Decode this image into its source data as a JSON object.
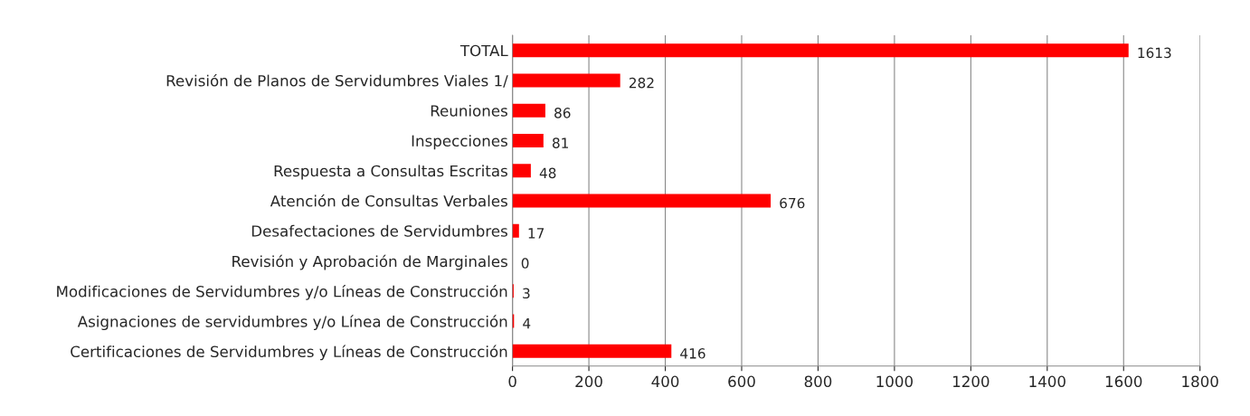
{
  "chart_data": {
    "type": "bar",
    "orientation": "horizontal",
    "categories": [
      "TOTAL",
      "Revisión de Planos de Servidumbres Viales 1/",
      "Reuniones",
      "Inspecciones",
      "Respuesta a Consultas Escritas",
      "Atención de Consultas Verbales",
      "Desafectaciones de Servidumbres",
      "Revisión y Aprobación de Marginales",
      "Modificaciones de Servidumbres y/o Líneas de Construcción",
      "Asignaciones de servidumbres y/o Línea de Construcción",
      "Certificaciones de Servidumbres y Líneas de Construcción"
    ],
    "values": [
      1613,
      282,
      86,
      81,
      48,
      676,
      17,
      0,
      3,
      4,
      416
    ],
    "color": "#ff0000",
    "data_labels": true,
    "xlim": [
      0,
      1800
    ],
    "xticks": [
      0,
      200,
      400,
      600,
      800,
      1000,
      1200,
      1400,
      1600,
      1800
    ],
    "grid": "x"
  }
}
